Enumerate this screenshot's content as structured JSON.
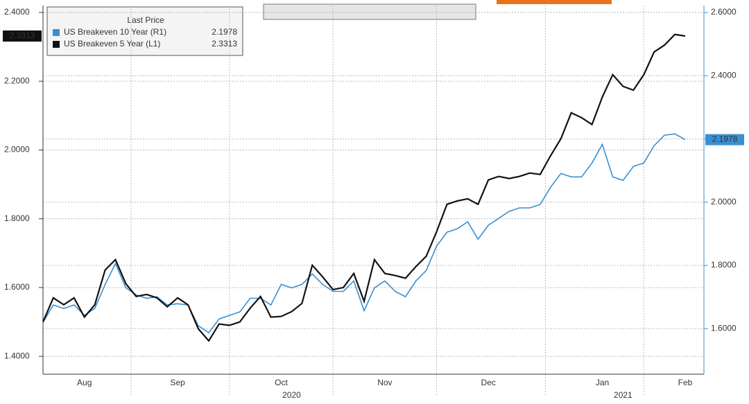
{
  "chart_data": {
    "type": "line",
    "legend_title": "Last Price",
    "categories": [
      null,
      null,
      null,
      null,
      "Aug",
      null,
      null,
      null,
      null,
      null,
      null,
      null,
      null,
      "Sep",
      null,
      null,
      null,
      null,
      null,
      null,
      null,
      null,
      null,
      "Oct",
      null,
      null,
      null,
      null,
      null,
      null,
      null,
      null,
      null,
      "Nov",
      null,
      null,
      null,
      null,
      null,
      null,
      null,
      null,
      null,
      "Dec",
      null,
      null,
      null,
      null,
      null,
      null,
      null,
      null,
      null,
      null,
      "Jan",
      null,
      null,
      null,
      null,
      null,
      null,
      null,
      "Feb"
    ],
    "year_categories": [
      null,
      null,
      null,
      null,
      null,
      null,
      null,
      null,
      null,
      null,
      null,
      null,
      null,
      null,
      null,
      null,
      null,
      null,
      null,
      null,
      null,
      null,
      null,
      null,
      "2020",
      null,
      null,
      null,
      null,
      null,
      null,
      null,
      null,
      null,
      null,
      null,
      null,
      null,
      null,
      null,
      null,
      null,
      null,
      null,
      null,
      null,
      null,
      null,
      null,
      null,
      null,
      null,
      null,
      null,
      null,
      null,
      "2021",
      null,
      null,
      null,
      null,
      null,
      null
    ],
    "ylim": [
      1.348,
      2.42
    ],
    "yticks": [
      {
        "value": 1.4,
        "label": "1.4000"
      },
      {
        "value": 1.6,
        "label": "1.6000"
      },
      {
        "value": 1.8,
        "label": "1.8000"
      },
      {
        "value": 2.0,
        "label": "2.0000"
      },
      {
        "value": 2.2,
        "label": "2.2000"
      },
      {
        "value": 2.4,
        "label": "2.4000"
      }
    ],
    "y2lim": [
      1.456,
      2.622
    ],
    "y2ticks": [
      {
        "value": 1.6,
        "label": "1.6000"
      },
      {
        "value": 1.8,
        "label": "1.8000"
      },
      {
        "value": 2.0,
        "label": "2.0000"
      },
      {
        "value": 2.2,
        "label": "2.2000"
      },
      {
        "value": 2.4,
        "label": "2.4000"
      },
      {
        "value": 2.6,
        "label": "2.6000"
      }
    ],
    "grid": true,
    "series": [
      {
        "name": "US Breakeven 10 Year (R1)",
        "color": "#3a8fd0",
        "axis": "y2",
        "values": [
          1.62,
          1.675,
          1.664,
          1.675,
          1.642,
          1.664,
          1.74,
          1.806,
          1.729,
          1.707,
          1.696,
          1.701,
          1.675,
          1.679,
          1.675,
          1.609,
          1.587,
          1.631,
          1.642,
          1.653,
          1.696,
          1.696,
          1.675,
          1.74,
          1.729,
          1.74,
          1.773,
          1.74,
          1.718,
          1.718,
          1.751,
          1.657,
          1.729,
          1.751,
          1.718,
          1.701,
          1.751,
          1.784,
          1.861,
          1.905,
          1.916,
          1.938,
          1.883,
          1.927,
          1.949,
          1.971,
          1.982,
          1.982,
          1.993,
          2.047,
          2.091,
          2.08,
          2.08,
          2.124,
          2.183,
          2.08,
          2.069,
          2.113,
          2.124,
          2.179,
          2.212,
          2.216,
          2.1978
        ]
      },
      {
        "name": "US Breakeven 5 Year (L1)",
        "color": "#111111",
        "axis": "y",
        "values": [
          1.5,
          1.57,
          1.55,
          1.57,
          1.514,
          1.55,
          1.651,
          1.681,
          1.611,
          1.574,
          1.58,
          1.57,
          1.544,
          1.57,
          1.55,
          1.48,
          1.445,
          1.494,
          1.49,
          1.5,
          1.54,
          1.574,
          1.514,
          1.516,
          1.53,
          1.554,
          1.665,
          1.631,
          1.594,
          1.6,
          1.641,
          1.56,
          1.681,
          1.641,
          1.635,
          1.627,
          1.661,
          1.691,
          1.762,
          1.842,
          1.852,
          1.858,
          1.842,
          1.913,
          1.923,
          1.917,
          1.923,
          1.933,
          1.929,
          1.983,
          2.033,
          2.108,
          2.094,
          2.074,
          2.154,
          2.219,
          2.185,
          2.174,
          2.219,
          2.285,
          2.305,
          2.336,
          2.3313
        ]
      }
    ]
  }
}
